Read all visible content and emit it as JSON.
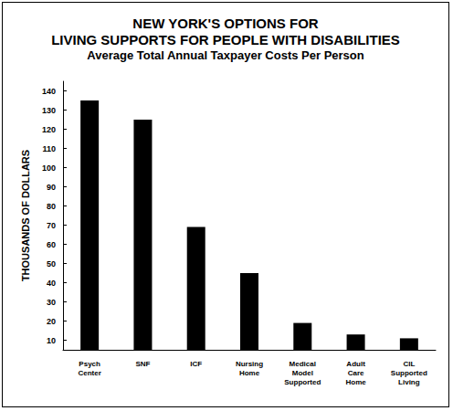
{
  "chart_data": {
    "type": "bar",
    "title": "NEW YORK'S OPTIONS FOR\nLIVING SUPPORTS FOR PEOPLE WITH DISABILITIES",
    "subtitle": "Average Total Annual Taxpayer Costs Per Person",
    "y_label": "THOUSANDS OF DOLLARS",
    "categories": [
      "Psych\nCenter",
      "SNF",
      "ICF",
      "Nursing\nHome",
      "Medical\nModel\nSupported",
      "Adult\nCare\nHome",
      "CIL\nSupported\nLiving"
    ],
    "values": [
      135,
      125,
      69,
      45,
      19,
      13,
      11
    ],
    "color": "#000000",
    "ylim": [
      5,
      145
    ],
    "yticks": [
      10,
      20,
      30,
      40,
      50,
      60,
      70,
      80,
      90,
      100,
      110,
      120,
      130,
      140
    ],
    "grid": false
  }
}
